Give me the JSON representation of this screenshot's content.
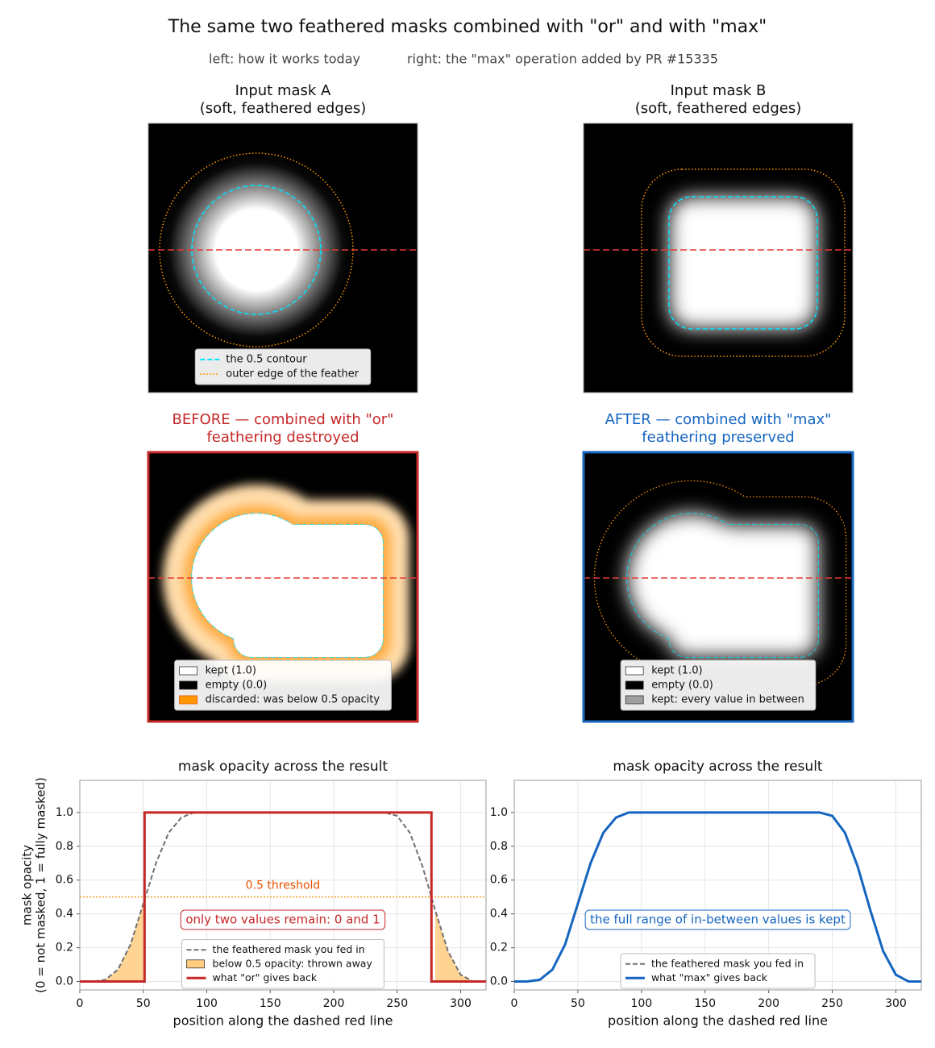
{
  "title": "The same two feathered masks combined with \"or\" and with \"max\"",
  "subtitle": [
    "left: how it works today",
    "right: the \"max\" operation added by PR #15335"
  ],
  "panels": [
    {
      "title": [
        "Input mask A",
        "(soft, feathered edges)"
      ],
      "frame_color": "#999999",
      "legend": [
        {
          "name": "the 0.5 contour",
          "color": "#00e5ff",
          "style": "dashed"
        },
        {
          "name": "outer edge of the feather",
          "color": "#ff9800",
          "style": "dotted"
        }
      ]
    },
    {
      "title": [
        "Input mask B",
        "(soft, feathered edges)"
      ],
      "frame_color": "#999999"
    },
    {
      "title": [
        "BEFORE — combined with \"or\"",
        "feathering destroyed"
      ],
      "title_color": "#c62828",
      "frame_color": "#c62828",
      "legend": [
        {
          "name": "kept (1.0)",
          "color": "#ffffff",
          "style": "patch"
        },
        {
          "name": "empty (0.0)",
          "color": "#000000",
          "style": "patch"
        },
        {
          "name": "discarded: was below 0.5 opacity",
          "color": "#ff9800",
          "style": "patch"
        }
      ]
    },
    {
      "title": [
        "AFTER — combined with \"max\"",
        "feathering preserved"
      ],
      "title_color": "#1565c0",
      "frame_color": "#1565c0",
      "legend": [
        {
          "name": "kept (1.0)",
          "color": "#ffffff",
          "style": "patch"
        },
        {
          "name": "empty (0.0)",
          "color": "#000000",
          "style": "patch"
        },
        {
          "name": "kept: every value in between",
          "color": "#a0a0a0",
          "style": "patch"
        }
      ]
    }
  ],
  "chart_data": [
    {
      "type": "line",
      "title": "mask opacity across the result",
      "xlabel": "position along the dashed red line",
      "ylabel": [
        "mask opacity",
        "(0 = not masked, 1 = fully masked)"
      ],
      "xlim": [
        0,
        320
      ],
      "ylim": [
        -0.05,
        1.19
      ],
      "xticks": [
        0,
        50,
        100,
        150,
        200,
        250,
        300
      ],
      "yticks": [
        {
          "value": 0,
          "label": "0.0"
        },
        {
          "value": 0.2,
          "label": "0.2"
        },
        {
          "value": 0.4,
          "label": "0.4"
        },
        {
          "value": 0.6,
          "label": "0.6"
        },
        {
          "value": 0.8,
          "label": "0.8"
        },
        {
          "value": 1,
          "label": "1.0"
        }
      ],
      "grid": true,
      "series": [
        {
          "name": "the feathered mask you fed in",
          "color": "#707070",
          "style": "dashed",
          "x": [
            0,
            10,
            20,
            30,
            40,
            50,
            60,
            70,
            80,
            90,
            100,
            110,
            120,
            130,
            140,
            150,
            160,
            170,
            180,
            190,
            200,
            210,
            220,
            230,
            240,
            250,
            260,
            270,
            280,
            290,
            300,
            310,
            320
          ],
          "values": [
            0,
            0,
            0.01,
            0.07,
            0.22,
            0.46,
            0.7,
            0.88,
            0.97,
            1,
            1,
            1,
            1,
            1,
            1,
            1,
            1,
            1,
            1,
            1,
            1,
            1,
            1,
            1,
            1,
            0.98,
            0.88,
            0.68,
            0.42,
            0.18,
            0.04,
            0,
            0
          ]
        },
        {
          "name": "what \"or\" gives back",
          "color": "#c62828",
          "style": "solid",
          "x": [
            0,
            51,
            51,
            277,
            277,
            320
          ],
          "values": [
            0,
            0,
            1,
            1,
            0,
            0
          ]
        }
      ],
      "threshold": {
        "value": 0.5,
        "label": "0.5 threshold",
        "color": "#f0a020"
      },
      "fill": {
        "name": "below 0.5 opacity: thrown away",
        "color": "#ffcc80"
      },
      "annotation": {
        "text": "only two values remain: 0 and 1",
        "color": "#c62828"
      }
    },
    {
      "type": "line",
      "title": "mask opacity across the result",
      "xlabel": "position along the dashed red line",
      "xlim": [
        0,
        320
      ],
      "ylim": [
        -0.05,
        1.19
      ],
      "xticks": [
        0,
        50,
        100,
        150,
        200,
        250,
        300
      ],
      "yticks": [
        {
          "value": 0,
          "label": "0.0"
        },
        {
          "value": 0.2,
          "label": "0.2"
        },
        {
          "value": 0.4,
          "label": "0.4"
        },
        {
          "value": 0.6,
          "label": "0.6"
        },
        {
          "value": 0.8,
          "label": "0.8"
        },
        {
          "value": 1,
          "label": "1.0"
        }
      ],
      "grid": true,
      "series": [
        {
          "name": "the feathered mask you fed in",
          "color": "#707070",
          "style": "dashed",
          "x": [
            0,
            10,
            20,
            30,
            40,
            50,
            60,
            70,
            80,
            90,
            100,
            110,
            120,
            130,
            140,
            150,
            160,
            170,
            180,
            190,
            200,
            210,
            220,
            230,
            240,
            250,
            260,
            270,
            280,
            290,
            300,
            310,
            320
          ],
          "values": [
            0,
            0,
            0.01,
            0.07,
            0.22,
            0.46,
            0.7,
            0.88,
            0.97,
            1,
            1,
            1,
            1,
            1,
            1,
            1,
            1,
            1,
            1,
            1,
            1,
            1,
            1,
            1,
            1,
            0.98,
            0.88,
            0.68,
            0.42,
            0.18,
            0.04,
            0,
            0
          ]
        },
        {
          "name": "what \"max\" gives back",
          "color": "#1565c0",
          "style": "solid",
          "x": [
            0,
            10,
            20,
            30,
            40,
            50,
            60,
            70,
            80,
            90,
            100,
            110,
            120,
            130,
            140,
            150,
            160,
            170,
            180,
            190,
            200,
            210,
            220,
            230,
            240,
            250,
            260,
            270,
            280,
            290,
            300,
            310,
            320
          ],
          "values": [
            0,
            0,
            0.01,
            0.07,
            0.22,
            0.46,
            0.7,
            0.88,
            0.97,
            1,
            1,
            1,
            1,
            1,
            1,
            1,
            1,
            1,
            1,
            1,
            1,
            1,
            1,
            1,
            1,
            0.98,
            0.88,
            0.68,
            0.42,
            0.18,
            0.04,
            0,
            0
          ]
        }
      ],
      "annotation": {
        "text": "the full range of in-between values is kept",
        "color": "#1565c0"
      }
    }
  ]
}
